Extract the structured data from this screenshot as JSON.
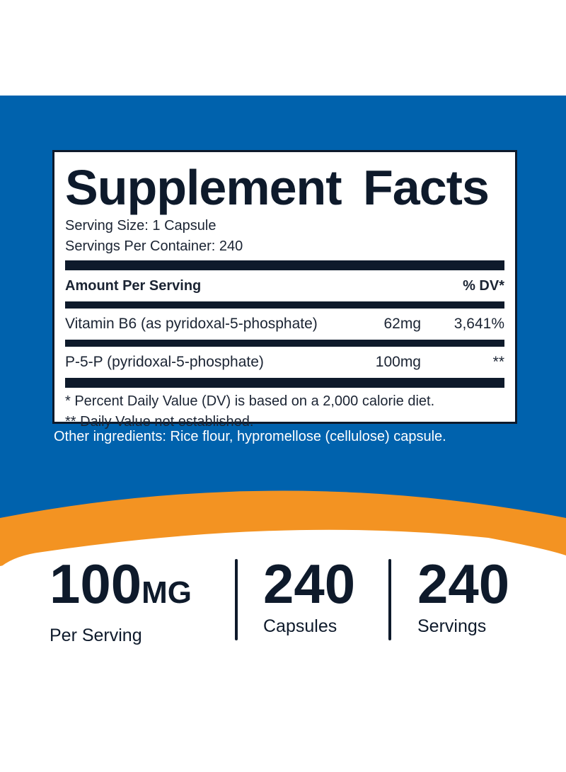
{
  "colors": {
    "blue": "#0062ad",
    "orange": "#f39322",
    "navy": "#0e1a2b"
  },
  "facts": {
    "title": "Supplement Facts",
    "serving_size": "Serving Size: 1 Capsule",
    "servings_per_container": "Servings Per Container: 240",
    "header": {
      "amount": "Amount Per Serving",
      "dv": "% DV*"
    },
    "rows": [
      {
        "name": "Vitamin B6 (as pyridoxal-5-phosphate)",
        "amount": "62mg",
        "dv": "3,641%"
      },
      {
        "name": "P-5-P (pyridoxal-5-phosphate)",
        "amount": "100mg",
        "dv": "**"
      }
    ],
    "footnotes": [
      "* Percent Daily Value (DV) is based on a 2,000 calorie diet.",
      "** Daily Value not established."
    ]
  },
  "other_ingredients": "Other ingredients: Rice flour, hypromellose (cellulose) capsule.",
  "stats": [
    {
      "value": "100",
      "unit": "MG",
      "label": "Per Serving"
    },
    {
      "value": "240",
      "label": "Capsules"
    },
    {
      "value": "240",
      "label": "Servings"
    }
  ]
}
